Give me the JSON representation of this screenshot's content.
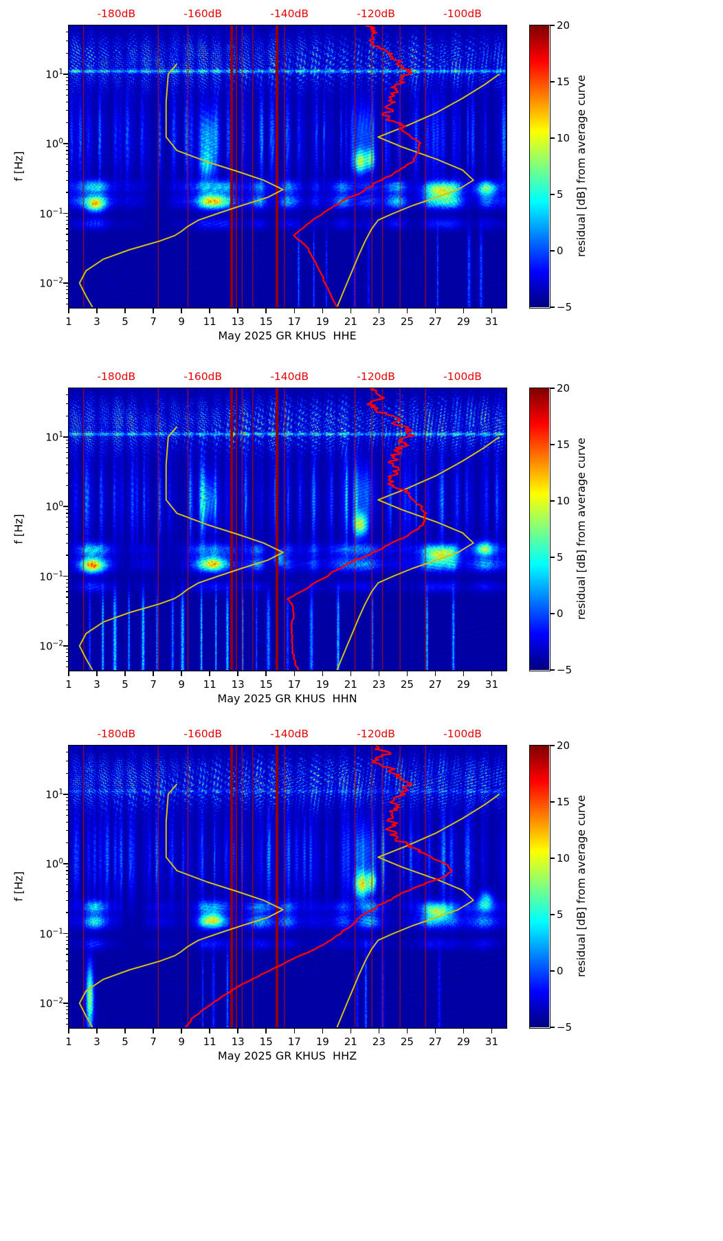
{
  "chart_data": {
    "type": "heatmap",
    "ylabel": "f [Hz]",
    "x_axis": {
      "min": 1,
      "max": 32,
      "ticks": [
        1,
        3,
        5,
        7,
        9,
        11,
        13,
        15,
        17,
        19,
        21,
        23,
        25,
        27,
        29,
        31
      ]
    },
    "y_axis": {
      "fmin": 0.0045,
      "fmax": 50,
      "tick_exponents": [
        1,
        0,
        -1,
        -2
      ]
    },
    "db_axis": {
      "min": -191,
      "max": -90
    },
    "top_axis": {
      "labels": [
        "-180dB",
        "-160dB",
        "-140dB",
        "-120dB",
        "-100dB"
      ],
      "values": [
        -180,
        -160,
        -140,
        -120,
        -100
      ],
      "color": "#e80000"
    },
    "colorbar": {
      "label": "residual [dB] from average curve",
      "min": -5,
      "max": 20,
      "ticks": [
        20,
        15,
        10,
        5,
        0,
        -5
      ]
    },
    "colors": {
      "model_curve": "#d4c013",
      "average_curve": "#ff0000",
      "gap_line": "#990000",
      "event_line": "#b41400"
    },
    "model_curves": {
      "nlnm": [
        [
          14,
          -166
        ],
        [
          10,
          -168
        ],
        [
          4,
          -168.5
        ],
        [
          1.25,
          -168.5
        ],
        [
          0.8,
          -166
        ],
        [
          0.55,
          -159
        ],
        [
          0.4,
          -152
        ],
        [
          0.3,
          -146
        ],
        [
          0.22,
          -141.5
        ],
        [
          0.17,
          -145
        ],
        [
          0.13,
          -151
        ],
        [
          0.1,
          -156.5
        ],
        [
          0.08,
          -161
        ],
        [
          0.065,
          -163.5
        ],
        [
          0.055,
          -165
        ],
        [
          0.048,
          -166.5
        ],
        [
          0.04,
          -170
        ],
        [
          0.03,
          -177
        ],
        [
          0.022,
          -183
        ],
        [
          0.015,
          -187
        ],
        [
          0.01,
          -188.5
        ],
        [
          0.0065,
          -187
        ],
        [
          0.0045,
          -185.5
        ]
      ],
      "nhnm": [
        [
          10,
          -91.5
        ],
        [
          7,
          -95
        ],
        [
          4.5,
          -100
        ],
        [
          2.8,
          -106
        ],
        [
          1.8,
          -113
        ],
        [
          1.25,
          -119.5
        ],
        [
          0.9,
          -114
        ],
        [
          0.6,
          -106
        ],
        [
          0.42,
          -100
        ],
        [
          0.3,
          -97.5
        ],
        [
          0.22,
          -101
        ],
        [
          0.17,
          -106
        ],
        [
          0.13,
          -111.5
        ],
        [
          0.1,
          -116
        ],
        [
          0.08,
          -119.5
        ],
        [
          0.06,
          -121
        ],
        [
          0.04,
          -122.5
        ],
        [
          0.025,
          -124
        ],
        [
          0.015,
          -125.5
        ],
        [
          0.009,
          -127
        ],
        [
          0.0045,
          -129
        ]
      ]
    },
    "panels": [
      {
        "channel": "HHE",
        "xlabel": "May 2025 GR KHUS  HHE",
        "seed": 11,
        "line_strength": 1.0,
        "low_amp": 0.8,
        "average_psd_curve": [
          [
            50,
            -122
          ],
          [
            35,
            -119.5
          ],
          [
            28,
            -121
          ],
          [
            22,
            -117.5
          ],
          [
            18,
            -116
          ],
          [
            14,
            -113.5
          ],
          [
            11,
            -112.5
          ],
          [
            9,
            -113.5
          ],
          [
            7,
            -115
          ],
          [
            5.5,
            -116.5
          ],
          [
            4.5,
            -117
          ],
          [
            3.5,
            -116.5
          ],
          [
            2.8,
            -117.5
          ],
          [
            2.2,
            -116.5
          ],
          [
            1.8,
            -114.5
          ],
          [
            1.4,
            -112.5
          ],
          [
            1.1,
            -110.5
          ],
          [
            0.9,
            -110
          ],
          [
            0.7,
            -110.5
          ],
          [
            0.55,
            -111.5
          ],
          [
            0.45,
            -113.5
          ],
          [
            0.35,
            -116.5
          ],
          [
            0.28,
            -119.5
          ],
          [
            0.22,
            -122.5
          ],
          [
            0.17,
            -126
          ],
          [
            0.13,
            -129.5
          ],
          [
            0.1,
            -132.5
          ],
          [
            0.08,
            -134.5
          ],
          [
            0.065,
            -136.5
          ],
          [
            0.055,
            -138
          ],
          [
            0.048,
            -139
          ],
          [
            0.04,
            -137.5
          ],
          [
            0.03,
            -135.5
          ],
          [
            0.02,
            -134
          ],
          [
            0.013,
            -132.5
          ],
          [
            0.009,
            -131.5
          ],
          [
            0.006,
            -130
          ],
          [
            0.0045,
            -129
          ]
        ],
        "gap_days_thick": [
          12.55,
          15.75
        ],
        "gap_days_medium": [
          12.9
        ],
        "event_line_days": [
          2.05,
          7.35,
          9.45,
          13.3,
          14.05,
          16.3,
          21.3,
          22.5,
          23.25,
          24.5,
          26.3
        ],
        "micro_days": [
          2.6,
          3.1,
          10.6,
          11.3,
          12.1,
          14.5,
          16.6,
          18.5,
          20.4,
          22.2,
          24.3,
          26.6,
          27.5,
          28.3,
          30.6
        ],
        "low_days": [
          17.4,
          18.3,
          19.2,
          21.4,
          22.3,
          27.3,
          29.4,
          30.2
        ],
        "hot_spots": [
          {
            "day": 21.7,
            "f": 0.55,
            "amp": 12,
            "dw": 0.45,
            "fw": 0.16
          },
          {
            "day": 22.4,
            "f": 0.6,
            "amp": 8,
            "dw": 0.3,
            "fw": 0.14
          },
          {
            "day": 11.2,
            "f": 0.15,
            "amp": 9,
            "dw": 0.8,
            "fw": 0.1
          },
          {
            "day": 27.4,
            "f": 0.2,
            "amp": 9,
            "dw": 1.1,
            "fw": 0.1
          },
          {
            "day": 30.6,
            "f": 0.22,
            "amp": 8,
            "dw": 0.7,
            "fw": 0.1
          },
          {
            "day": 2.9,
            "f": 0.13,
            "amp": 8,
            "dw": 0.6,
            "fw": 0.1
          },
          {
            "day": 10.8,
            "f": 0.5,
            "amp": 6,
            "dw": 0.5,
            "fw": 0.2
          },
          {
            "day": 10.9,
            "f": 1.2,
            "amp": 5,
            "dw": 0.6,
            "fw": 0.35
          },
          {
            "day": 21.9,
            "f": 1.5,
            "amp": 4,
            "dw": 0.7,
            "fw": 0.4
          }
        ]
      },
      {
        "channel": "HHN",
        "xlabel": "May 2025 GR KHUS  HHN",
        "seed": 22,
        "line_strength": 0.9,
        "low_amp": 1.4,
        "average_psd_curve": [
          [
            50,
            -121.5
          ],
          [
            35,
            -119
          ],
          [
            27,
            -120.5
          ],
          [
            21,
            -117
          ],
          [
            17,
            -115.5
          ],
          [
            13,
            -113
          ],
          [
            10.5,
            -112
          ],
          [
            8.5,
            -113
          ],
          [
            7,
            -114.5
          ],
          [
            5.5,
            -116
          ],
          [
            4.5,
            -116.5
          ],
          [
            3.5,
            -116
          ],
          [
            2.7,
            -117
          ],
          [
            2.1,
            -116
          ],
          [
            1.7,
            -114
          ],
          [
            1.3,
            -111.5
          ],
          [
            1.0,
            -109.5
          ],
          [
            0.8,
            -108.5
          ],
          [
            0.62,
            -108.5
          ],
          [
            0.5,
            -110
          ],
          [
            0.4,
            -112.5
          ],
          [
            0.32,
            -115.5
          ],
          [
            0.25,
            -119
          ],
          [
            0.2,
            -122
          ],
          [
            0.15,
            -126.5
          ],
          [
            0.11,
            -130.5
          ],
          [
            0.085,
            -133.5
          ],
          [
            0.067,
            -136
          ],
          [
            0.055,
            -138.5
          ],
          [
            0.047,
            -140.5
          ],
          [
            0.04,
            -139.5
          ],
          [
            0.03,
            -139
          ],
          [
            0.02,
            -139.5
          ],
          [
            0.012,
            -139.5
          ],
          [
            0.007,
            -139
          ],
          [
            0.0045,
            -138
          ]
        ],
        "gap_days_thick": [
          12.55,
          15.75
        ],
        "gap_days_medium": [
          12.9
        ],
        "event_line_days": [
          2.05,
          7.35,
          9.45,
          13.3,
          14.05,
          16.3,
          21.3,
          22.5,
          23.25,
          24.5,
          26.3
        ],
        "micro_days": [
          2.5,
          3.2,
          10.5,
          11.3,
          12.0,
          14.4,
          16.5,
          18.4,
          20.3,
          22.2,
          26.5,
          27.4,
          28.2,
          30.5
        ],
        "low_days": [
          2.4,
          3.3,
          4.2,
          5.3,
          6.2,
          7.4,
          8.3,
          9.2,
          10.4,
          11.3,
          12.2,
          13.4,
          14.3,
          15.2,
          16.4,
          18.3,
          20.2,
          22.4,
          26.3,
          28.4
        ],
        "hot_spots": [
          {
            "day": 21.7,
            "f": 0.55,
            "amp": 12,
            "dw": 0.45,
            "fw": 0.16
          },
          {
            "day": 11.2,
            "f": 0.15,
            "amp": 10,
            "dw": 0.8,
            "fw": 0.1
          },
          {
            "day": 2.7,
            "f": 0.14,
            "amp": 9,
            "dw": 0.7,
            "fw": 0.1
          },
          {
            "day": 27.4,
            "f": 0.2,
            "amp": 10,
            "dw": 1.1,
            "fw": 0.1
          },
          {
            "day": 30.5,
            "f": 0.25,
            "amp": 7,
            "dw": 0.6,
            "fw": 0.1
          },
          {
            "day": 15.9,
            "f": 0.18,
            "amp": 6,
            "dw": 0.4,
            "fw": 0.12
          },
          {
            "day": 10.9,
            "f": 1.2,
            "amp": 5,
            "dw": 0.6,
            "fw": 0.35
          },
          {
            "day": 21.9,
            "f": 1.5,
            "amp": 4,
            "dw": 0.7,
            "fw": 0.4
          }
        ]
      },
      {
        "channel": "HHZ",
        "xlabel": "May 2025 GR KHUS  HHZ",
        "seed": 33,
        "line_strength": 0.4,
        "low_amp": 0.9,
        "average_psd_curve": [
          [
            50,
            -120.5
          ],
          [
            38,
            -118.5
          ],
          [
            30,
            -120
          ],
          [
            24,
            -117
          ],
          [
            19,
            -115.5
          ],
          [
            15,
            -113.5
          ],
          [
            12,
            -112.5
          ],
          [
            10,
            -113.5
          ],
          [
            8,
            -115
          ],
          [
            6.5,
            -116
          ],
          [
            5,
            -116.5
          ],
          [
            4,
            -116
          ],
          [
            3,
            -116.5
          ],
          [
            2.4,
            -115.5
          ],
          [
            1.9,
            -113
          ],
          [
            1.5,
            -110
          ],
          [
            1.2,
            -106.5
          ],
          [
            0.95,
            -103.5
          ],
          [
            0.8,
            -102.5
          ],
          [
            0.68,
            -104
          ],
          [
            0.55,
            -107.5
          ],
          [
            0.45,
            -111
          ],
          [
            0.36,
            -114.5
          ],
          [
            0.28,
            -118
          ],
          [
            0.22,
            -121
          ],
          [
            0.17,
            -123.5
          ],
          [
            0.13,
            -125.5
          ],
          [
            0.1,
            -128
          ],
          [
            0.08,
            -130.5
          ],
          [
            0.06,
            -134
          ],
          [
            0.045,
            -138.5
          ],
          [
            0.033,
            -143
          ],
          [
            0.024,
            -147.5
          ],
          [
            0.017,
            -152
          ],
          [
            0.012,
            -156
          ],
          [
            0.008,
            -160
          ],
          [
            0.006,
            -162.5
          ],
          [
            0.0045,
            -164
          ]
        ],
        "gap_days_thick": [
          12.55,
          15.75
        ],
        "gap_days_medium": [
          12.9
        ],
        "event_line_days": [
          2.05,
          7.35,
          9.45,
          13.3,
          14.05,
          16.3,
          21.3,
          22.5,
          23.25,
          24.5,
          26.3
        ],
        "micro_days": [
          2.6,
          3.1,
          10.6,
          11.4,
          14.5,
          16.5,
          20.4,
          22.3,
          26.6,
          27.4,
          28.3,
          30.5
        ],
        "low_days": [
          10.4,
          11.3,
          12.3,
          21.4,
          22.2,
          23.3,
          27.4
        ],
        "hot_spots": [
          {
            "day": 21.8,
            "f": 0.5,
            "amp": 13,
            "dw": 0.5,
            "fw": 0.18
          },
          {
            "day": 22.5,
            "f": 0.55,
            "amp": 9,
            "dw": 0.3,
            "fw": 0.14
          },
          {
            "day": 2.5,
            "f": 0.012,
            "amp": 12,
            "dw": 0.25,
            "fw": 0.45
          },
          {
            "day": 27.2,
            "f": 0.2,
            "amp": 10,
            "dw": 0.9,
            "fw": 0.1
          },
          {
            "day": 11.2,
            "f": 0.16,
            "amp": 8,
            "dw": 0.7,
            "fw": 0.1
          },
          {
            "day": 30.6,
            "f": 0.3,
            "amp": 7,
            "dw": 0.5,
            "fw": 0.12
          },
          {
            "day": 21.9,
            "f": 1.5,
            "amp": 4,
            "dw": 0.7,
            "fw": 0.4
          }
        ]
      }
    ]
  }
}
